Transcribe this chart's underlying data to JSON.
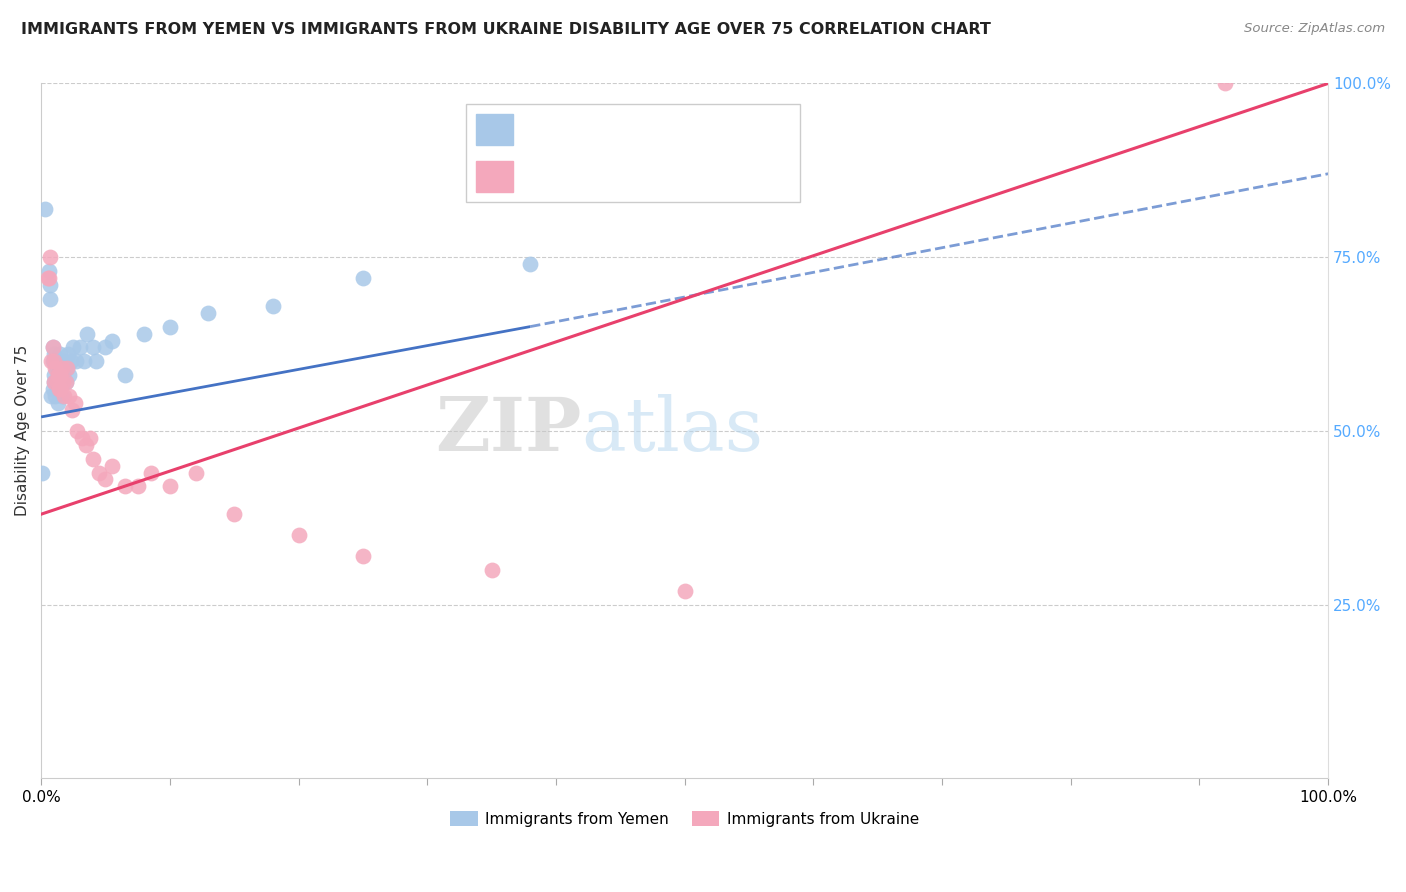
{
  "title": "IMMIGRANTS FROM YEMEN VS IMMIGRANTS FROM UKRAINE DISABILITY AGE OVER 75 CORRELATION CHART",
  "source": "Source: ZipAtlas.com",
  "ylabel": "Disability Age Over 75",
  "legend_label1": "Immigrants from Yemen",
  "legend_label2": "Immigrants from Ukraine",
  "color_yemen": "#a8c8e8",
  "color_ukraine": "#f4a8bc",
  "color_line_yemen": "#4472c4",
  "color_line_ukraine": "#e8406c",
  "color_r_yemen": "#4472c4",
  "color_r_ukraine": "#e8406c",
  "color_n_yemen": "#4472c4",
  "color_n_ukraine": "#e8406c",
  "color_right_axis": "#55aaff",
  "background_color": "#ffffff",
  "watermark_zip": "ZIP",
  "watermark_atlas": "atlas",
  "xlim": [
    0,
    1
  ],
  "ylim": [
    0,
    1
  ],
  "yemen_x": [
    0.001,
    0.003,
    0.006,
    0.007,
    0.007,
    0.008,
    0.009,
    0.009,
    0.009,
    0.01,
    0.01,
    0.01,
    0.011,
    0.011,
    0.012,
    0.012,
    0.012,
    0.013,
    0.013,
    0.014,
    0.014,
    0.015,
    0.015,
    0.015,
    0.016,
    0.016,
    0.017,
    0.018,
    0.019,
    0.02,
    0.021,
    0.022,
    0.023,
    0.025,
    0.027,
    0.03,
    0.033,
    0.036,
    0.04,
    0.043,
    0.05,
    0.055,
    0.065,
    0.08,
    0.1,
    0.13,
    0.18,
    0.25,
    0.38
  ],
  "yemen_y": [
    0.44,
    0.82,
    0.73,
    0.69,
    0.71,
    0.55,
    0.56,
    0.6,
    0.62,
    0.57,
    0.58,
    0.61,
    0.55,
    0.57,
    0.57,
    0.59,
    0.6,
    0.54,
    0.58,
    0.56,
    0.59,
    0.57,
    0.59,
    0.61,
    0.55,
    0.58,
    0.58,
    0.6,
    0.57,
    0.59,
    0.61,
    0.58,
    0.6,
    0.62,
    0.6,
    0.62,
    0.6,
    0.64,
    0.62,
    0.6,
    0.62,
    0.63,
    0.58,
    0.64,
    0.65,
    0.67,
    0.68,
    0.72,
    0.74
  ],
  "ukraine_x": [
    0.005,
    0.006,
    0.007,
    0.008,
    0.009,
    0.01,
    0.01,
    0.011,
    0.012,
    0.013,
    0.014,
    0.014,
    0.015,
    0.015,
    0.016,
    0.017,
    0.018,
    0.019,
    0.02,
    0.022,
    0.024,
    0.026,
    0.028,
    0.032,
    0.035,
    0.038,
    0.04,
    0.045,
    0.05,
    0.055,
    0.065,
    0.075,
    0.085,
    0.1,
    0.12,
    0.15,
    0.2,
    0.25,
    0.35,
    0.5,
    0.92
  ],
  "ukraine_y": [
    0.72,
    0.72,
    0.75,
    0.6,
    0.62,
    0.57,
    0.6,
    0.59,
    0.57,
    0.58,
    0.56,
    0.58,
    0.56,
    0.58,
    0.59,
    0.57,
    0.55,
    0.57,
    0.59,
    0.55,
    0.53,
    0.54,
    0.5,
    0.49,
    0.48,
    0.49,
    0.46,
    0.44,
    0.43,
    0.45,
    0.42,
    0.42,
    0.44,
    0.42,
    0.44,
    0.38,
    0.35,
    0.32,
    0.3,
    0.27,
    1.0
  ],
  "line_yemen_x0": 0.0,
  "line_yemen_y0": 0.52,
  "line_yemen_x1": 0.38,
  "line_yemen_y1": 0.65,
  "line_yemen_dash_x0": 0.38,
  "line_yemen_dash_y0": 0.65,
  "line_yemen_dash_x1": 1.0,
  "line_yemen_dash_y1": 0.87,
  "line_ukraine_x0": 0.0,
  "line_ukraine_y0": 0.38,
  "line_ukraine_x1": 1.0,
  "line_ukraine_y1": 1.0
}
